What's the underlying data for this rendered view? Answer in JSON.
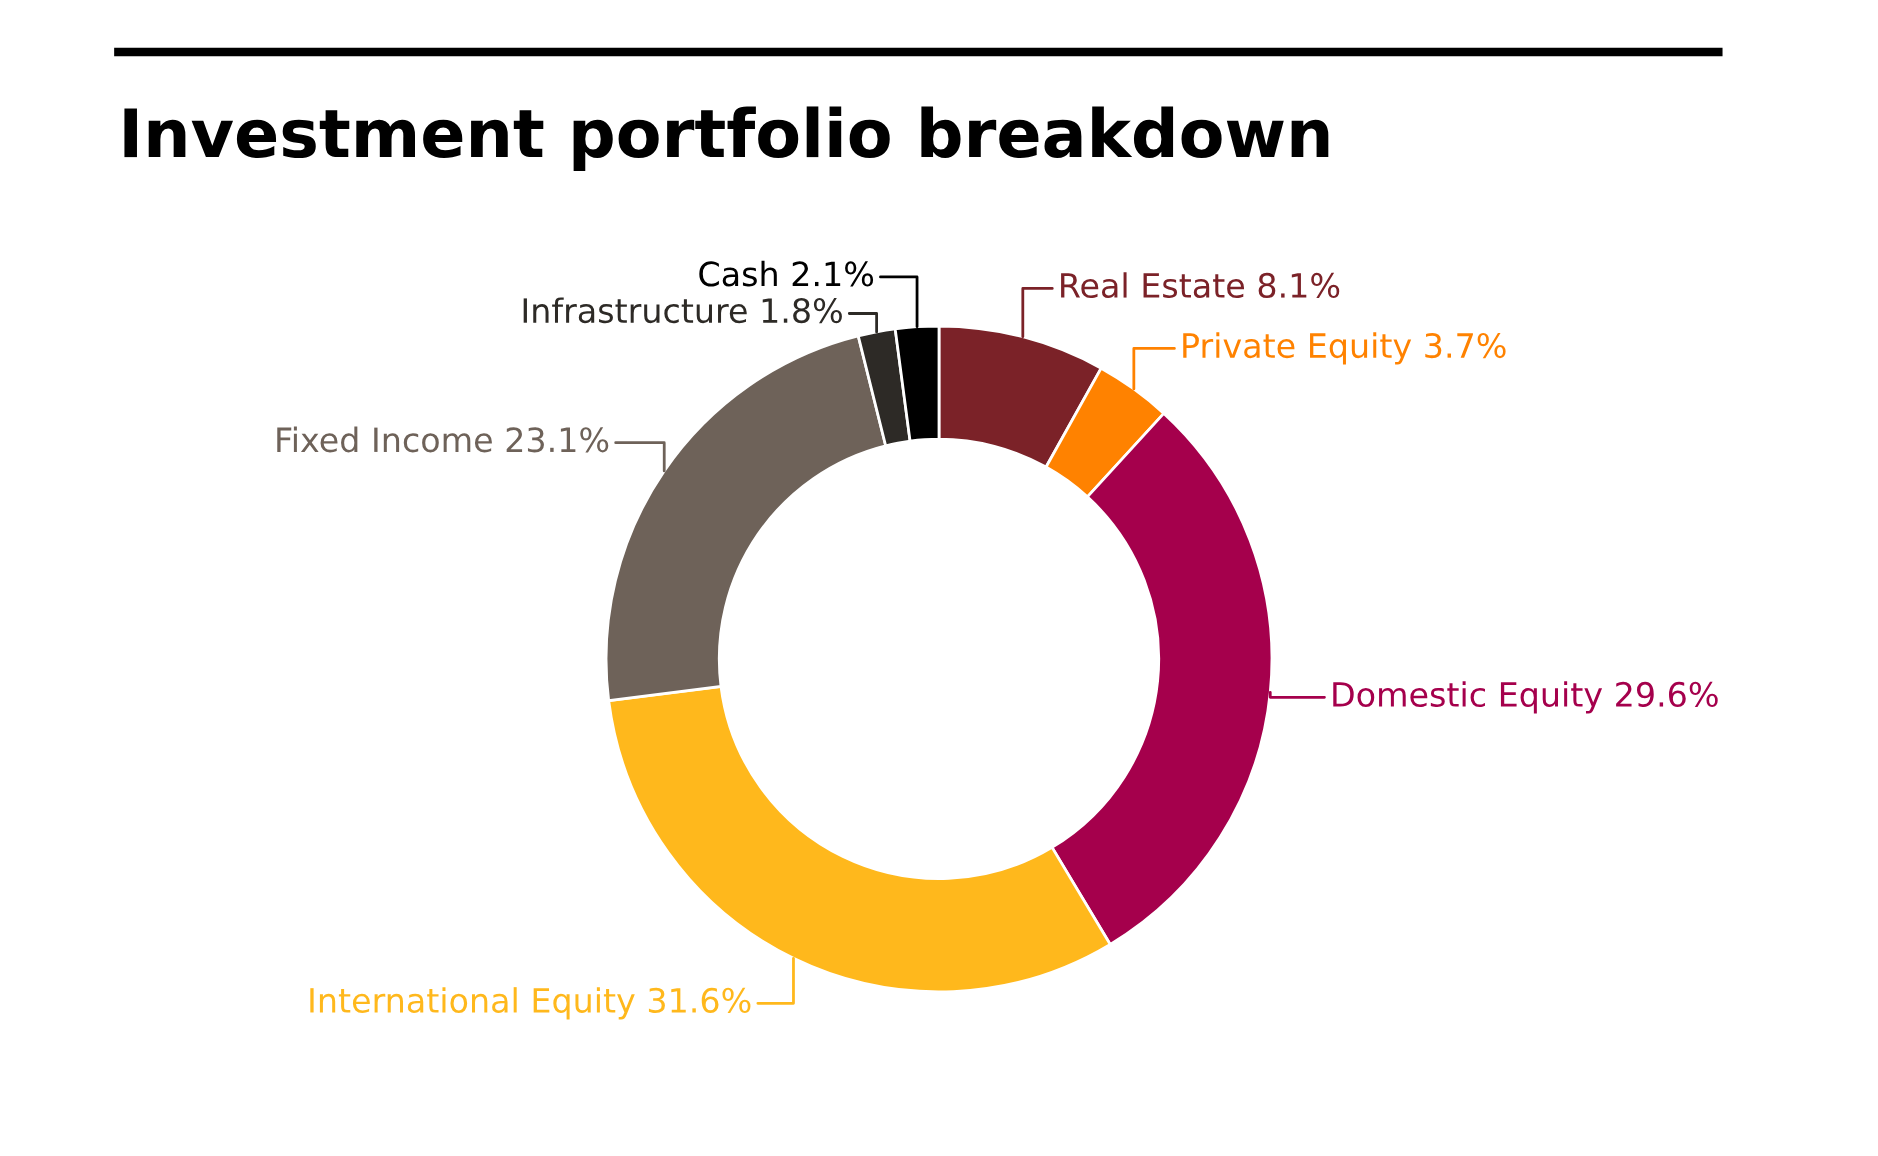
{
  "chart_data": {
    "type": "donut",
    "title": "Investment portfolio breakdown",
    "categories": [
      "Real Estate",
      "Private Equity",
      "Domestic Equity",
      "International Equity",
      "Fixed Income",
      "Infrastructure",
      "Cash"
    ],
    "values": [
      8.1,
      3.7,
      29.6,
      31.6,
      23.1,
      1.8,
      2.1
    ],
    "colors": [
      "#7b2228",
      "#ff8200",
      "#a5004c",
      "#ffb81c",
      "#6e6259",
      "#2d2a26",
      "#000000"
    ],
    "value_labels": [
      "8.1%",
      "3.7%",
      "29.6%",
      "31.6%",
      "23.1%",
      "1.8%",
      "2.1%"
    ],
    "legend": false
  }
}
